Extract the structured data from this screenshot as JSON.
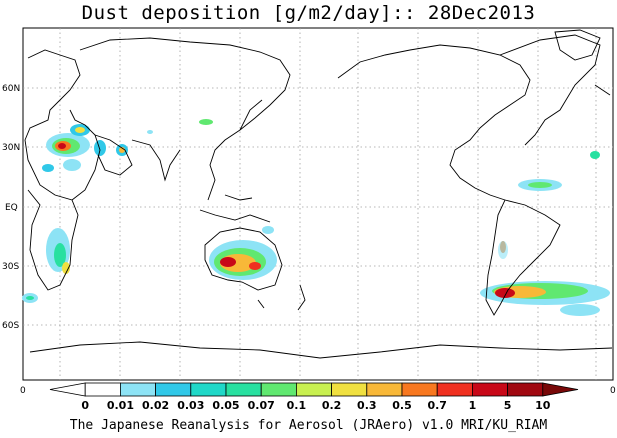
{
  "title": "Dust deposition [g/m2/day]:: 28Dec2013",
  "credit": "The Japanese Reanalysis for Aerosol (JRAero) v1.0 MRI/KU_RIAM",
  "lat_labels": [
    "60N",
    "30N",
    "EQ",
    "30S",
    "60S"
  ],
  "edge_label_left": "0",
  "edge_label_right": "0",
  "colorbar": {
    "labels": [
      "0",
      "0.01",
      "0.02",
      "0.03",
      "0.05",
      "0.07",
      "0.1",
      "0.2",
      "0.3",
      "0.5",
      "0.7",
      "1",
      "5",
      "10"
    ],
    "colors": [
      "#ffffff",
      "#ffffff",
      "#8de3f5",
      "#30c8e8",
      "#20d8c8",
      "#28e0a0",
      "#60e870",
      "#c8f050",
      "#f0e040",
      "#f8b838",
      "#f87820",
      "#f03020",
      "#c80818",
      "#a00810",
      "#780808"
    ]
  },
  "colors": {
    "coast": "#000000",
    "grid": "#a0a0a0"
  }
}
